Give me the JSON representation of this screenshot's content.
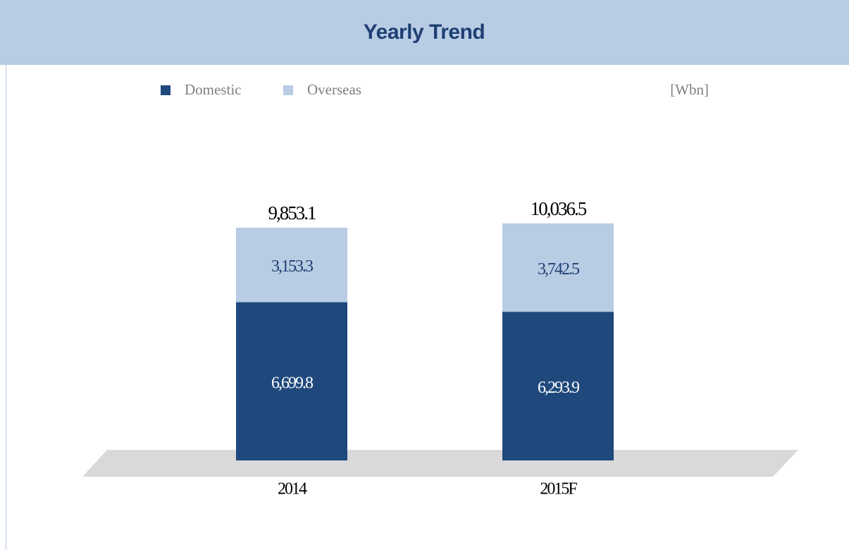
{
  "chart_data": {
    "type": "stacked-bar",
    "title": "Yearly Trend",
    "unit": "[Wbn]",
    "categories": [
      "2014",
      "2015F"
    ],
    "series": [
      {
        "name": "Domestic",
        "color": "#1f497d",
        "values": [
          6699.8,
          6293.9
        ],
        "value_labels": [
          "6,699.8",
          "6,293.9"
        ]
      },
      {
        "name": "Overseas",
        "color": "#b8cce4",
        "values": [
          3153.3,
          3742.5
        ],
        "value_labels": [
          "3,153.3",
          "3,742.5"
        ]
      }
    ],
    "totals": [
      9853.1,
      10036.5
    ],
    "total_labels": [
      "9,853.1",
      "10,036.5"
    ]
  }
}
